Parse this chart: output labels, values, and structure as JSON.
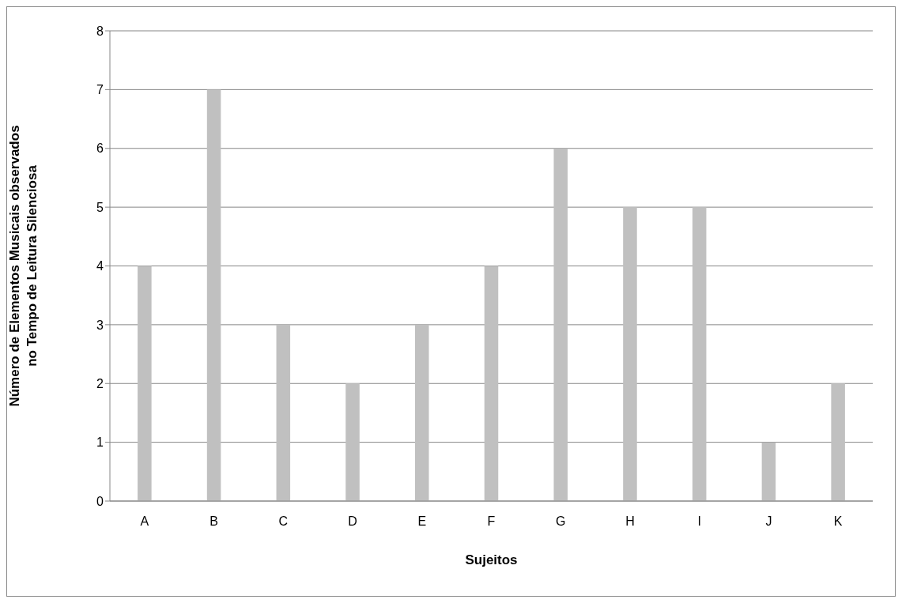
{
  "chart_data": {
    "type": "bar",
    "xlabel": "Sujeitos",
    "ylabel": "Número de Elementos Musicais observados\nno Tempo de Leitura Silenciosa",
    "categories": [
      "A",
      "B",
      "C",
      "D",
      "E",
      "F",
      "G",
      "H",
      "I",
      "J",
      "K"
    ],
    "values": [
      4,
      7,
      3,
      2,
      3,
      4,
      6,
      5,
      5,
      1,
      2
    ],
    "color": "#c0c0c0",
    "ylim": [
      0,
      8
    ],
    "yticks": [
      0,
      1,
      2,
      3,
      4,
      5,
      6,
      7,
      8
    ],
    "grid": "y"
  }
}
